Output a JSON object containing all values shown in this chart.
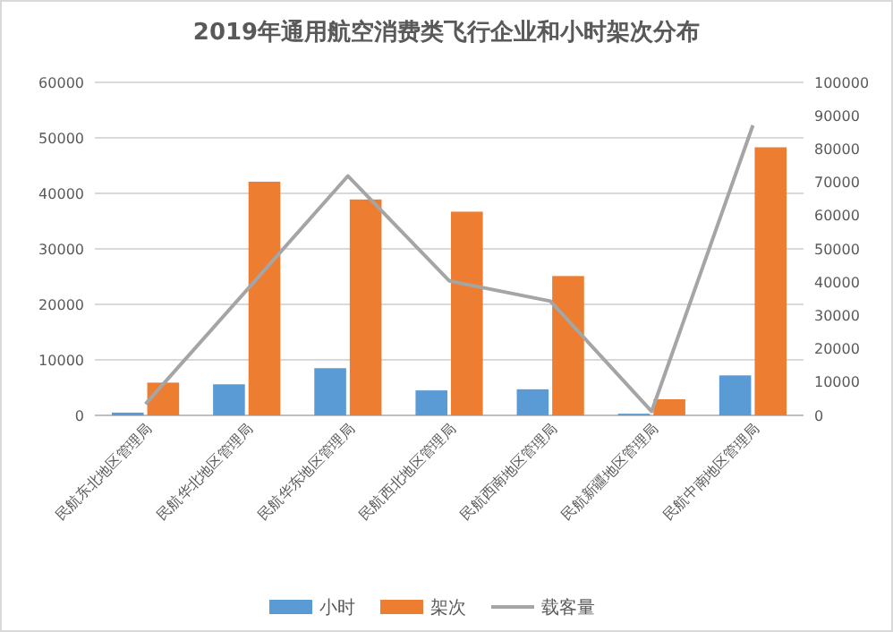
{
  "chart_data": {
    "type": "bar",
    "title": "2019年通用航空消费类飞行企业和小时架次分布",
    "categories": [
      "民航东北地区管理局",
      "民航华北地区管理局",
      "民航华东地区管理局",
      "民航西北地区管理局",
      "民航西南地区管理局",
      "民航新疆地区管理局",
      "民航中南地区管理局"
    ],
    "series": [
      {
        "name": "小时",
        "color": "#5b9bd5",
        "values": [
          500,
          5600,
          8500,
          4500,
          4700,
          300,
          7200
        ]
      },
      {
        "name": "架次",
        "color": "#ed7d31",
        "values": [
          5900,
          42100,
          38900,
          36700,
          25100,
          2900,
          48300
        ]
      },
      {
        "name": "载客量",
        "type": "line",
        "axis": "y2",
        "color": "#a5a5a5",
        "values": [
          3400,
          37600,
          71900,
          40400,
          34300,
          1200,
          87100
        ]
      }
    ],
    "ylim": [
      0,
      60000
    ],
    "yticks": [
      0,
      10000,
      20000,
      30000,
      40000,
      50000,
      60000
    ],
    "y2lim": [
      0,
      100000
    ],
    "y2ticks": [
      0,
      10000,
      20000,
      30000,
      40000,
      50000,
      60000,
      70000,
      80000,
      90000,
      100000
    ],
    "grid": "y",
    "legend": "bottom",
    "marker": "none"
  }
}
